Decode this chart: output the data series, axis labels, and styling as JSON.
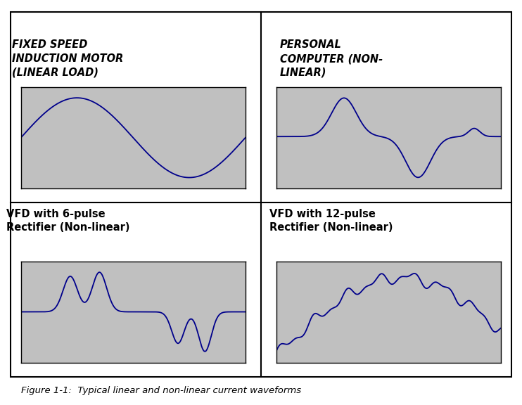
{
  "title_top_left": "FIXED SPEED\nINDUCTION MOTOR\n(LINEAR LOAD)",
  "title_top_right": "PERSONAL\nCOMPUTER (NON-\nLINEAR)",
  "title_bot_left": "VFD with 6-pulse\nRectifier (Non-linear)",
  "title_bot_right": "VFD with 12-pulse\nRectifier (Non-linear)",
  "caption": "Figure 1-1:  Typical linear and non-linear current waveforms",
  "wave_color": "#00008B",
  "wave_bg": "#C0C0C0",
  "border_color": "#000000",
  "fig_bg": "#FFFFFF"
}
